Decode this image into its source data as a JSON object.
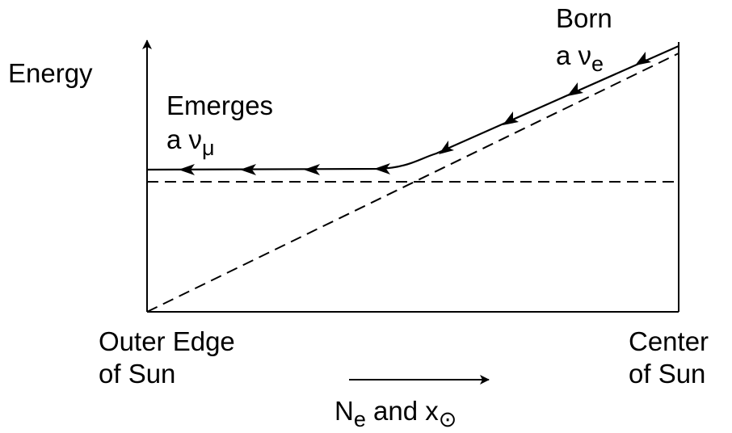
{
  "diagram": {
    "y_axis_label": "Energy",
    "born_label": "Born",
    "born_particle": {
      "prefix": "a ",
      "symbol": "ν",
      "subscript": "e"
    },
    "emerges_label": "Emerges",
    "emerges_particle": {
      "prefix": "a ",
      "symbol": "ν",
      "subscript": "μ"
    },
    "left_label_line1": "Outer Edge",
    "left_label_line2": "of Sun",
    "right_label_line1": "Center",
    "right_label_line2": "of Sun",
    "x_axis_caption": {
      "symbol": "N",
      "subscript": "e",
      "middle": " and x",
      "subscript2": "⊙"
    },
    "colors": {
      "ink": "#000000",
      "background": "#ffffff"
    }
  }
}
